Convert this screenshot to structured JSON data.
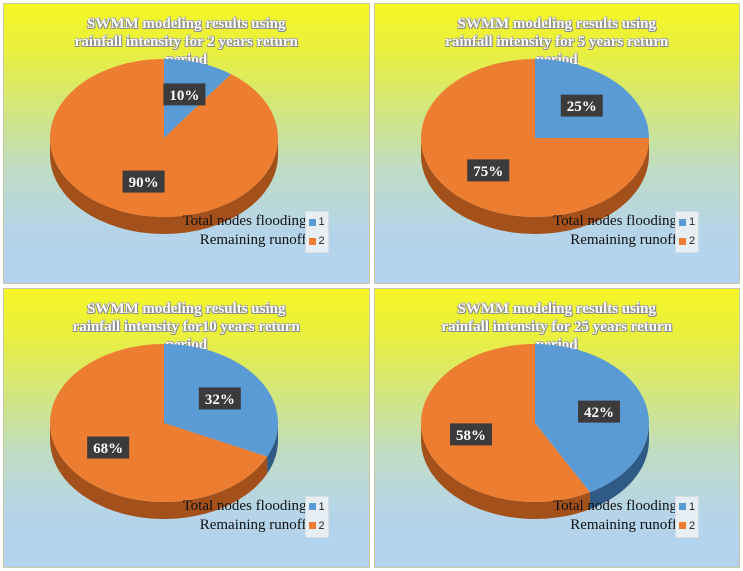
{
  "colors": {
    "flooding": "#5b9bd5",
    "remaining": "#ed7d31",
    "flooding_side": "#2e5a85",
    "remaining_side": "#a3501a",
    "label_bg": "#3b3b3b"
  },
  "legend": {
    "flooding_label": "Total nodes flooding",
    "remaining_label": "Remaining runoff",
    "key_1": "1",
    "key_2": "2"
  },
  "chart_data": [
    {
      "type": "pie",
      "title": "SWMM modeling results using rainfall intensity for 2 years return period",
      "title_lines": [
        "SWMM modeling results using",
        "rainfall intensity for 2 years return",
        "period"
      ],
      "labels": [
        "Total nodes flooding",
        "Remaining runoff"
      ],
      "values": [
        10,
        90
      ],
      "data_labels": [
        "10%",
        "90%"
      ]
    },
    {
      "type": "pie",
      "title": "SWMM modeling results using rainfall intensity for 5 years return period",
      "title_lines": [
        "SWMM modeling results using",
        "rainfall intensity for 5 years return",
        "period"
      ],
      "labels": [
        "Total nodes flooding",
        "Remaining runoff"
      ],
      "values": [
        25,
        75
      ],
      "data_labels": [
        "25%",
        "75%"
      ]
    },
    {
      "type": "pie",
      "title": "SWMM modeling results using rainfall intensity for10 years return period",
      "title_lines": [
        "SWMM modeling results using",
        "rainfall intensity for10 years return",
        "period"
      ],
      "labels": [
        "Total nodes flooding",
        "Remaining runoff"
      ],
      "values": [
        32,
        68
      ],
      "data_labels": [
        "32%",
        "68%"
      ]
    },
    {
      "type": "pie",
      "title": "SWMM modeling results using rainfall intensity for 25 years return period",
      "title_lines": [
        "SWMM modeling results using",
        "rainfall intensity for 25 years return",
        "period"
      ],
      "labels": [
        "Total nodes flooding",
        "Remaining runoff"
      ],
      "values": [
        42,
        58
      ],
      "data_labels": [
        "42%",
        "58%"
      ]
    }
  ]
}
